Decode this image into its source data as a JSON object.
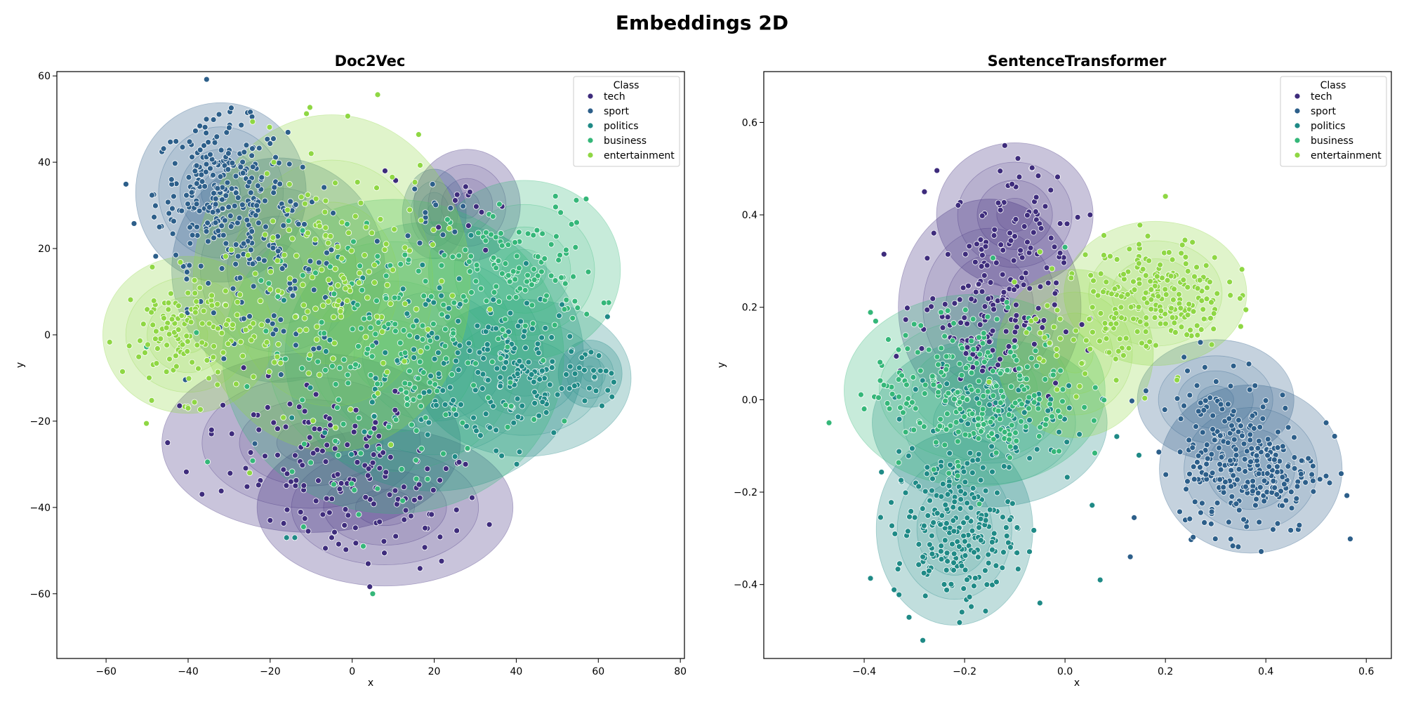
{
  "suptitle": "Embeddings 2D",
  "colors": {
    "tech": "#3e2c7c",
    "sport": "#2d5f8a",
    "politics": "#1f8a86",
    "business": "#35b779",
    "entertainment": "#8fd744",
    "contour_alpha": 0.28
  },
  "chart_data": [
    {
      "type": "scatter",
      "title": "Doc2Vec",
      "xlabel": "x",
      "ylabel": "y",
      "xlim": [
        -72,
        81
      ],
      "ylim": [
        -75,
        61
      ],
      "xticks": [
        -60,
        -40,
        -20,
        0,
        20,
        40,
        60,
        80
      ],
      "yticks": [
        -60,
        -40,
        -20,
        0,
        20,
        40,
        60
      ],
      "xtick_labels": [
        "−60",
        "−40",
        "−20",
        "0",
        "20",
        "40",
        "60",
        "80"
      ],
      "ytick_labels": [
        "−60",
        "−40",
        "−20",
        "0",
        "20",
        "40",
        "60"
      ],
      "legend_title": "Class",
      "legend_location": "top-right",
      "density_contours": true,
      "series": [
        {
          "name": "tech",
          "clusters": [
            {
              "cx": 8,
              "cy": -40,
              "sx": 12,
              "sy": 7,
              "n": 80
            },
            {
              "cx": -10,
              "cy": -25,
              "sx": 14,
              "sy": 8,
              "n": 90
            },
            {
              "cx": 28,
              "cy": 30,
              "sx": 5,
              "sy": 5,
              "n": 12
            }
          ],
          "outliers": [
            [
              -45,
              -25
            ],
            [
              -20,
              -43
            ],
            [
              -5,
              -47
            ],
            [
              8,
              38
            ]
          ]
        },
        {
          "name": "sport",
          "clusters": [
            {
              "cx": -32,
              "cy": 33,
              "sx": 8,
              "sy": 8,
              "n": 260
            },
            {
              "cx": -18,
              "cy": 15,
              "sx": 10,
              "sy": 10,
              "n": 110
            },
            {
              "cx": 20,
              "cy": 28,
              "sx": 3,
              "sy": 4,
              "n": 14
            }
          ],
          "outliers": [
            [
              -47,
              25
            ],
            [
              -30,
              48
            ]
          ]
        },
        {
          "name": "politics",
          "clusters": [
            {
              "cx": 42,
              "cy": -10,
              "sx": 10,
              "sy": 7,
              "n": 110
            },
            {
              "cx": 20,
              "cy": -5,
              "sx": 14,
              "sy": 12,
              "n": 130
            },
            {
              "cx": 58,
              "cy": -9,
              "sx": 3,
              "sy": 3,
              "n": 14
            }
          ],
          "outliers": [
            [
              -16,
              -47
            ],
            [
              -14,
              -47
            ]
          ]
        },
        {
          "name": "business",
          "clusters": [
            {
              "cx": 42,
              "cy": 15,
              "sx": 9,
              "sy": 8,
              "n": 110
            },
            {
              "cx": 10,
              "cy": -5,
              "sx": 16,
              "sy": 14,
              "n": 190
            }
          ],
          "outliers": [
            [
              5,
              -60
            ]
          ]
        },
        {
          "name": "entertainment",
          "clusters": [
            {
              "cx": -40,
              "cy": 0,
              "sx": 8,
              "sy": 7,
              "n": 130
            },
            {
              "cx": -5,
              "cy": 12,
              "sx": 13,
              "sy": 15,
              "n": 150
            }
          ],
          "outliers": [
            [
              -40,
              -17
            ],
            [
              -25,
              -32
            ],
            [
              -10,
              42
            ]
          ]
        }
      ]
    },
    {
      "type": "scatter",
      "title": "SentenceTransformer",
      "xlabel": "x",
      "ylabel": "y",
      "xlim": [
        -0.6,
        0.65
      ],
      "ylim": [
        -0.56,
        0.71
      ],
      "xticks": [
        -0.4,
        -0.2,
        0.0,
        0.2,
        0.4,
        0.6
      ],
      "yticks": [
        -0.4,
        -0.2,
        0.0,
        0.2,
        0.4,
        0.6
      ],
      "xtick_labels": [
        "−0.4",
        "−0.2",
        "0.0",
        "0.2",
        "0.4",
        "0.6"
      ],
      "ytick_labels": [
        "−0.4",
        "−0.2",
        "0.0",
        "0.2",
        "0.4",
        "0.6"
      ],
      "legend_title": "Class",
      "legend_location": "top-right",
      "density_contours": true,
      "series": [
        {
          "name": "tech",
          "clusters": [
            {
              "cx": -0.15,
              "cy": 0.2,
              "sx": 0.07,
              "sy": 0.09,
              "n": 160
            },
            {
              "cx": -0.1,
              "cy": 0.4,
              "sx": 0.06,
              "sy": 0.06,
              "n": 45
            }
          ],
          "outliers": [
            [
              -0.12,
              0.55
            ],
            [
              -0.28,
              0.45
            ],
            [
              0.05,
              0.4
            ]
          ]
        },
        {
          "name": "sport",
          "clusters": [
            {
              "cx": 0.37,
              "cy": -0.15,
              "sx": 0.07,
              "sy": 0.07,
              "n": 260
            },
            {
              "cx": 0.3,
              "cy": 0.0,
              "sx": 0.06,
              "sy": 0.05,
              "n": 40
            }
          ],
          "outliers": [
            [
              0.13,
              -0.34
            ],
            [
              0.52,
              -0.05
            ],
            [
              0.55,
              -0.16
            ]
          ]
        },
        {
          "name": "politics",
          "clusters": [
            {
              "cx": -0.22,
              "cy": -0.28,
              "sx": 0.06,
              "sy": 0.08,
              "n": 230
            },
            {
              "cx": -0.15,
              "cy": -0.05,
              "sx": 0.09,
              "sy": 0.07,
              "n": 90
            }
          ],
          "outliers": [
            [
              0.07,
              -0.39
            ],
            [
              -0.05,
              -0.44
            ]
          ]
        },
        {
          "name": "business",
          "clusters": [
            {
              "cx": -0.18,
              "cy": 0.02,
              "sx": 0.1,
              "sy": 0.08,
              "n": 260
            }
          ],
          "outliers": [
            [
              -0.47,
              -0.05
            ],
            [
              -0.4,
              -0.02
            ],
            [
              0.0,
              0.33
            ]
          ]
        },
        {
          "name": "entertainment",
          "clusters": [
            {
              "cx": 0.18,
              "cy": 0.23,
              "sx": 0.07,
              "sy": 0.06,
              "n": 220
            },
            {
              "cx": 0.02,
              "cy": 0.1,
              "sx": 0.06,
              "sy": 0.07,
              "n": 40
            }
          ],
          "outliers": [
            [
              0.2,
              0.44
            ],
            [
              -0.05,
              0.32
            ]
          ]
        }
      ]
    }
  ]
}
